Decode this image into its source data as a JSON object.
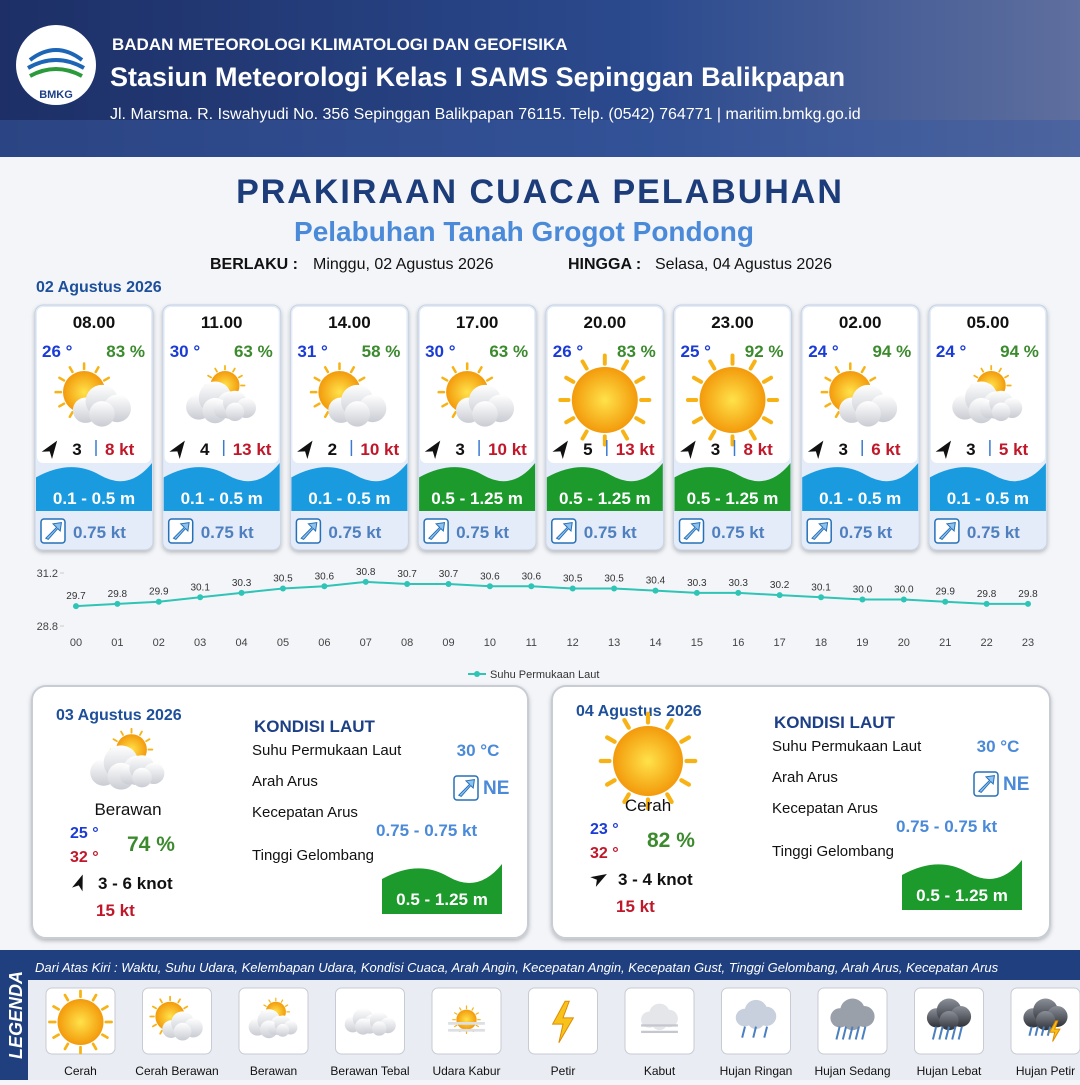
{
  "header": {
    "logo": "BMKG",
    "agency": "BADAN METEOROLOGI KLIMATOLOGI DAN GEOFISIKA",
    "station": "Stasiun Meteorologi Kelas I SAMS Sepinggan Balikpapan",
    "address": "Jl. Marsma. R. Iswahyudi No. 356 Sepinggan Balikpapan 76115. Telp. (0542) 764771 | maritim.bmkg.go.id"
  },
  "title": "PRAKIRAAN CUACA PELABUHAN",
  "subtitle": "Pelabuhan Tanah Grogot Pondong",
  "validity": {
    "from_label": "BERLAKU :",
    "from": "Minggu, 02 Agustus 2026",
    "to_label": "HINGGA :",
    "to": "Selasa, 04 Agustus 2026"
  },
  "today": {
    "date": "02 Agustus 2026",
    "forecasts": [
      {
        "time": "08.00",
        "temperature": "26 °",
        "humidity": "83 %",
        "icon": "sun-cloud",
        "wind_force": "3",
        "wind_speed": "8 kt",
        "wave": "0.1 - 0.5 m",
        "wave_color": "#1a9be0",
        "current": "0.75 kt"
      },
      {
        "time": "11.00",
        "temperature": "30 °",
        "humidity": "63 %",
        "icon": "cloud-sun",
        "wind_force": "4",
        "wind_speed": "13 kt",
        "wave": "0.1 - 0.5 m",
        "wave_color": "#1a9be0",
        "current": "0.75 kt"
      },
      {
        "time": "14.00",
        "temperature": "31 °",
        "humidity": "58 %",
        "icon": "sun-cloud",
        "wind_force": "2",
        "wind_speed": "10 kt",
        "wave": "0.1 - 0.5 m",
        "wave_color": "#1a9be0",
        "current": "0.75 kt"
      },
      {
        "time": "17.00",
        "temperature": "30 °",
        "humidity": "63 %",
        "icon": "sun-cloud",
        "wind_force": "3",
        "wind_speed": "10 kt",
        "wave": "0.5 - 1.25 m",
        "wave_color": "#1d9a2c",
        "current": "0.75 kt"
      },
      {
        "time": "20.00",
        "temperature": "26 °",
        "humidity": "83 %",
        "icon": "sun",
        "wind_force": "5",
        "wind_speed": "13 kt",
        "wave": "0.5 - 1.25 m",
        "wave_color": "#1d9a2c",
        "current": "0.75 kt"
      },
      {
        "time": "23.00",
        "temperature": "25 °",
        "humidity": "92 %",
        "icon": "sun",
        "wind_force": "3",
        "wind_speed": "8 kt",
        "wave": "0.5 - 1.25 m",
        "wave_color": "#1d9a2c",
        "current": "0.75 kt"
      },
      {
        "time": "02.00",
        "temperature": "24 °",
        "humidity": "94 %",
        "icon": "sun-cloud",
        "wind_force": "3",
        "wind_speed": "6 kt",
        "wave": "0.1 - 0.5 m",
        "wave_color": "#1a9be0",
        "current": "0.75 kt"
      },
      {
        "time": "05.00",
        "temperature": "24 °",
        "humidity": "94 %",
        "icon": "cloud-sun",
        "wind_force": "3",
        "wind_speed": "5 kt",
        "wave": "0.1 - 0.5 m",
        "wave_color": "#1a9be0",
        "current": "0.75 kt"
      }
    ]
  },
  "chart_data": {
    "type": "line",
    "categories": [
      "00",
      "01",
      "02",
      "03",
      "04",
      "05",
      "06",
      "07",
      "08",
      "09",
      "10",
      "11",
      "12",
      "13",
      "14",
      "15",
      "16",
      "17",
      "18",
      "19",
      "20",
      "21",
      "22",
      "23"
    ],
    "series": [
      {
        "name": "Suhu Permukaan Laut",
        "color": "#2ec4b6",
        "values": [
          29.7,
          29.8,
          29.9,
          30.1,
          30.3,
          30.5,
          30.6,
          30.8,
          30.7,
          30.7,
          30.6,
          30.6,
          30.5,
          30.5,
          30.4,
          30.3,
          30.3,
          30.2,
          30.1,
          30.0,
          30.0,
          29.9,
          29.8,
          29.8
        ],
        "value_labels": [
          "29.7",
          "29.8",
          "29.9",
          "30.1",
          "30.3",
          "30.5",
          "30.6",
          "30.8",
          "30.7",
          "30.7",
          "30.6",
          "30.6",
          "30.5",
          "30.5",
          "30.4",
          "30.3",
          "30.3",
          "30.2",
          "30.1",
          "30.0",
          "30.0",
          "29.9",
          "29.8",
          "29.8"
        ]
      }
    ],
    "ylim": [
      28.8,
      31.2
    ],
    "yticks": [
      28.8,
      31.2
    ],
    "legend": "bottom"
  },
  "outlook": [
    {
      "date": "03 Agustus 2026",
      "icon": "cloud-sun",
      "condition": "Berawan",
      "temp_min": "25 °",
      "temp_max": "32 °",
      "humidity": "74 %",
      "wind": "3  - 6 knot",
      "gust": "15 kt",
      "sea": {
        "title": "KONDISI LAUT",
        "rows": [
          {
            "label": "Suhu Permukaan Laut",
            "value": "30 °C"
          },
          {
            "label": "Arah Arus",
            "value": "NE"
          },
          {
            "label": "Kecepatan Arus",
            "value": "0.75  - 0.75 kt"
          },
          {
            "label": "Tinggi Gelombang",
            "value": "0.5 - 1.25 m"
          }
        ]
      }
    },
    {
      "date": "04 Agustus 2026",
      "icon": "sun",
      "condition": "Cerah",
      "temp_min": "23 °",
      "temp_max": "32 °",
      "humidity": "82 %",
      "wind": "3  - 4 knot",
      "gust": "15 kt",
      "sea": {
        "title": "KONDISI LAUT",
        "rows": [
          {
            "label": "Suhu Permukaan Laut",
            "value": "30 °C"
          },
          {
            "label": "Arah Arus",
            "value": "NE"
          },
          {
            "label": "Kecepatan Arus",
            "value": "0.75  - 0.75 kt"
          },
          {
            "label": "Tinggi Gelombang",
            "value": "0.5 - 1.25 m"
          }
        ]
      }
    }
  ],
  "legend": {
    "title": "LEGENDA",
    "note": "Dari Atas Kiri : Waktu, Suhu Udara, Kelembapan Udara, Kondisi Cuaca, Arah Angin, Kecepatan Angin, Kecepatan Gust, Tinggi Gelombang, Arah Arus, Kecepatan Arus",
    "items": [
      {
        "label": "Cerah",
        "icon": "sun"
      },
      {
        "label": "Cerah Berawan",
        "icon": "sun-cloud"
      },
      {
        "label": "Berawan",
        "icon": "cloud-sun"
      },
      {
        "label": "Berawan Tebal",
        "icon": "cloud-thick"
      },
      {
        "label": "Udara Kabur",
        "icon": "haze"
      },
      {
        "label": "Petir",
        "icon": "bolt"
      },
      {
        "label": "Kabut",
        "icon": "fog"
      },
      {
        "label": "Hujan Ringan",
        "icon": "rain-light"
      },
      {
        "label": "Hujan Sedang",
        "icon": "rain"
      },
      {
        "label": "Hujan Lebat",
        "icon": "rain-heavy"
      },
      {
        "label": "Hujan Petir",
        "icon": "rain-bolt"
      }
    ]
  }
}
